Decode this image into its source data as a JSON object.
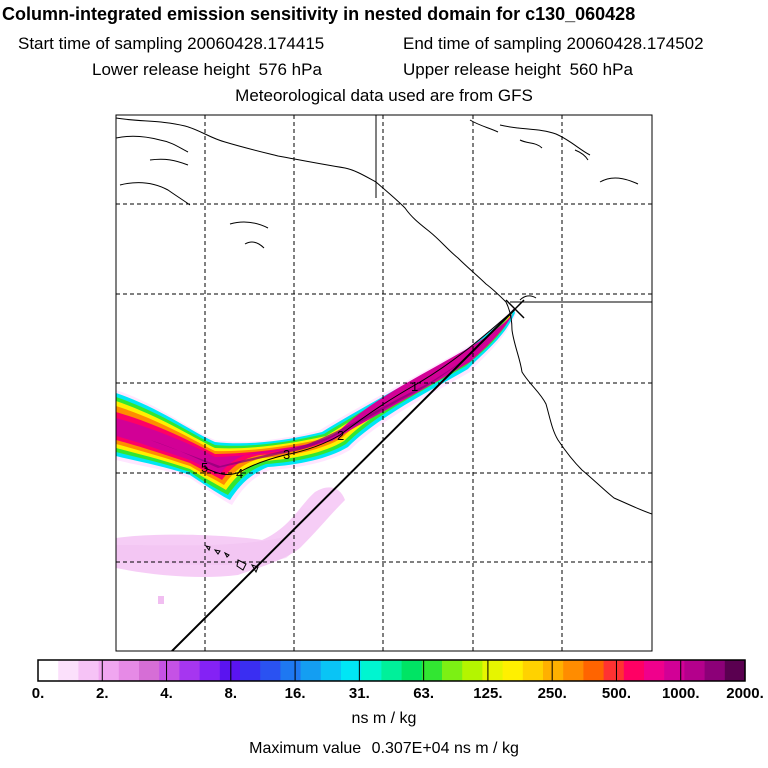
{
  "title": "Column-integrated emission sensitivity in nested domain for c130_060428",
  "header": {
    "start_label": "Start time of sampling",
    "start_value": "20060428.174415",
    "end_label": "End time of sampling",
    "end_value": "20060428.174502",
    "lower_label": "Lower release height",
    "lower_value": "576 hPa",
    "upper_label": "Upper release height",
    "upper_value": "560 hPa",
    "met_text": "Meteorological data used are from GFS"
  },
  "map": {
    "trajectory_labels": [
      "1",
      "2",
      "3",
      "4",
      "5"
    ],
    "release_marker": "X"
  },
  "colorbar": {
    "colors": [
      "#ffffff",
      "#fbe0fb",
      "#f6c3f6",
      "#f0a6f0",
      "#e68ae6",
      "#d66ed6",
      "#c552e5",
      "#a636f0",
      "#8422f5",
      "#5a14f0",
      "#3a2ef2",
      "#2a52f2",
      "#1e78f2",
      "#149ef2",
      "#0ac4f5",
      "#00e6f5",
      "#00f5d0",
      "#00f09a",
      "#00e464",
      "#32e632",
      "#7cf014",
      "#b4f500",
      "#e6f500",
      "#fff000",
      "#ffd200",
      "#ffb000",
      "#ff8c00",
      "#ff6400",
      "#ff3232",
      "#ff0064",
      "#f0008c",
      "#d20096",
      "#b4008c",
      "#8c0078",
      "#5a0050"
    ],
    "tick_labels": [
      "0.",
      "2.",
      "4.",
      "8.",
      "16.",
      "31.",
      "63.",
      "125.",
      "250.",
      "500.",
      "1000.",
      "2000."
    ],
    "units": "ns m / kg"
  },
  "footer": {
    "max_label": "Maximum value",
    "max_value": "0.307E+04",
    "max_units": "ns m / kg"
  }
}
